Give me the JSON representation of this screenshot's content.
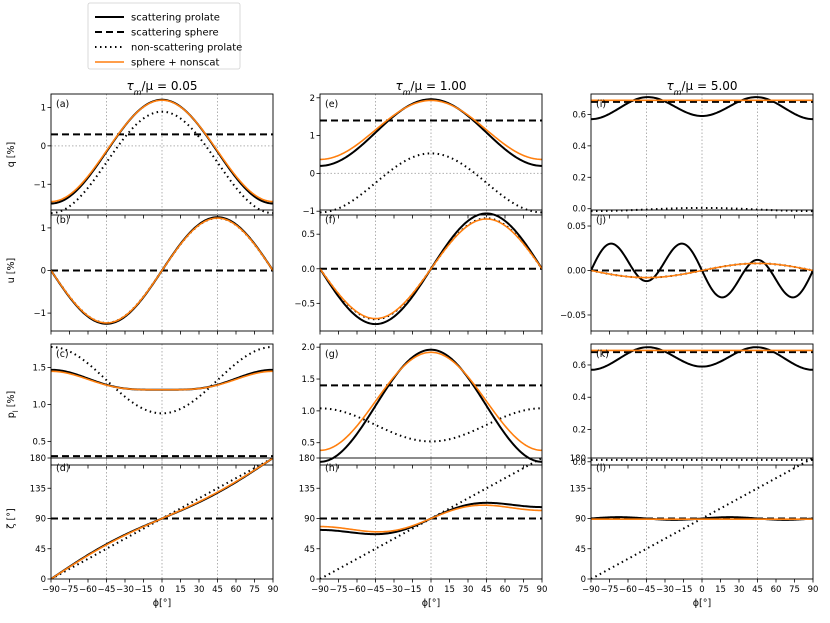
{
  "colors": {
    "scattering_prolate": "#000000",
    "scattering_sphere": "#000000",
    "non_scattering_prolate": "#000000",
    "sphere_nonscat": "#ff7f0e",
    "grid": "#b0b0b0"
  },
  "legend": {
    "placement": "top-left",
    "entries": [
      {
        "label": "scattering prolate",
        "style": "solid"
      },
      {
        "label": "scattering sphere",
        "style": "dashed"
      },
      {
        "label": "non-scattering prolate",
        "style": "dotted"
      },
      {
        "label": "sphere + nonscat",
        "style": "orange-solid"
      }
    ]
  },
  "columns": [
    {
      "title_prefix": "τ",
      "title_sub": "m",
      "title_suffix": "/μ = 0.05"
    },
    {
      "title_prefix": "τ",
      "title_sub": "m",
      "title_suffix": "/μ = 1.00"
    },
    {
      "title_prefix": "τ",
      "title_sub": "m",
      "title_suffix": "/μ = 5.00"
    }
  ],
  "row_ylabels": [
    {
      "main": "q [%]",
      "sub": ""
    },
    {
      "main": "u [%]",
      "sub": ""
    },
    {
      "main": "p",
      "sub": "l",
      "suffix": " [%]"
    },
    {
      "main": "ζ [°]",
      "sub": ""
    }
  ],
  "xlabel": "ϕ[°]",
  "chart_data": {
    "type": "line",
    "x_range": [
      -90,
      90
    ],
    "x_ticks": [
      -90,
      -75,
      -60,
      -45,
      -30,
      -15,
      0,
      15,
      30,
      45,
      60,
      75,
      90
    ],
    "x_tick_labels": [
      "−90",
      "−75",
      "−60",
      "−45",
      "−30",
      "−15",
      "0",
      "15",
      "30",
      "45",
      "60",
      "75",
      "90"
    ],
    "vertical_reference_lines": [
      -45,
      0,
      45
    ],
    "panels": [
      {
        "id": "a",
        "label": "(a)",
        "row": 0,
        "col": 0,
        "ylim": [
          -1.8,
          1.35
        ],
        "yticks": [
          -1,
          0,
          1
        ],
        "ytick_labels": [
          "−1",
          "0",
          "1"
        ],
        "hline": 0,
        "series": [
          {
            "name": "scattering prolate",
            "style": "solid",
            "formula": "cos2",
            "p": [
              -0.15,
              1.35
            ]
          },
          {
            "name": "scattering sphere",
            "style": "dashed",
            "formula": "const",
            "p": [
              0.3
            ]
          },
          {
            "name": "non-scattering prolate",
            "style": "dotted",
            "formula": "cos2",
            "p": [
              -0.43,
              1.32
            ]
          },
          {
            "name": "sphere + nonscat",
            "style": "orange",
            "formula": "cos2",
            "p": [
              -0.13,
              1.32
            ]
          }
        ]
      },
      {
        "id": "b",
        "label": "(b)",
        "row": 1,
        "col": 0,
        "ylim": [
          -1.42,
          1.42
        ],
        "yticks": [
          -1,
          0,
          1
        ],
        "ytick_labels": [
          "−1",
          "0",
          "1"
        ],
        "series": [
          {
            "name": "scattering prolate",
            "style": "solid",
            "formula": "sin2",
            "p": [
              1.25
            ]
          },
          {
            "name": "scattering sphere",
            "style": "dashed",
            "formula": "const",
            "p": [
              0
            ]
          },
          {
            "name": "non-scattering prolate",
            "style": "dotted",
            "formula": "sin2",
            "p": [
              1.23
            ]
          },
          {
            "name": "sphere + nonscat",
            "style": "orange",
            "formula": "sin2",
            "p": [
              1.23
            ]
          }
        ]
      },
      {
        "id": "c",
        "label": "(c)",
        "row": 2,
        "col": 0,
        "ylim": [
          0.18,
          1.82
        ],
        "yticks": [
          0.5,
          1.0,
          1.5
        ],
        "ytick_labels": [
          "0.5",
          "1.0",
          "1.5"
        ],
        "series": [
          {
            "name": "scattering prolate",
            "style": "solid",
            "formula": "flat",
            "p": [
              1.2,
              0.27,
              4
            ]
          },
          {
            "name": "scattering sphere",
            "style": "dashed",
            "formula": "const",
            "p": [
              0.3
            ]
          },
          {
            "name": "non-scattering prolate",
            "style": "dotted",
            "formula": "cos2",
            "p": [
              1.33,
              -0.45
            ]
          },
          {
            "name": "sphere + nonscat",
            "style": "orange",
            "formula": "flat",
            "p": [
              1.2,
              0.25,
              4
            ]
          }
        ]
      },
      {
        "id": "d",
        "label": "(d)",
        "row": 3,
        "col": 0,
        "ylim": [
          0,
          180
        ],
        "yticks": [
          0,
          45,
          90,
          135,
          180
        ],
        "ytick_labels": [
          "0",
          "45",
          "90",
          "135",
          "180"
        ],
        "series": [
          {
            "name": "scattering prolate",
            "style": "solid",
            "formula": "zeta",
            "p": [
              0.15
            ]
          },
          {
            "name": "scattering sphere",
            "style": "dashed",
            "formula": "const",
            "p": [
              90
            ]
          },
          {
            "name": "non-scattering prolate",
            "style": "dotted",
            "formula": "linear",
            "p": [
              90,
              1
            ]
          },
          {
            "name": "sphere + nonscat",
            "style": "orange",
            "formula": "zeta",
            "p": [
              0.13
            ]
          }
        ]
      },
      {
        "id": "e",
        "label": "(e)",
        "row": 0,
        "col": 1,
        "ylim": [
          -1.1,
          2.1
        ],
        "yticks": [
          -1,
          0,
          1,
          2
        ],
        "ytick_labels": [
          "−1",
          "0",
          "1",
          "2"
        ],
        "hline": 0,
        "series": [
          {
            "name": "scattering prolate",
            "style": "solid",
            "formula": "cos2",
            "p": [
              1.08,
              0.88
            ]
          },
          {
            "name": "scattering sphere",
            "style": "dashed",
            "formula": "const",
            "p": [
              1.4
            ]
          },
          {
            "name": "non-scattering prolate",
            "style": "dotted",
            "formula": "cos2",
            "p": [
              -0.25,
              0.78
            ]
          },
          {
            "name": "sphere + nonscat",
            "style": "orange",
            "formula": "cos2",
            "p": [
              1.15,
              0.78
            ]
          }
        ]
      },
      {
        "id": "f",
        "label": "(f)",
        "row": 1,
        "col": 1,
        "ylim": [
          -0.9,
          0.85
        ],
        "yticks": [
          -0.5,
          0,
          0.5
        ],
        "ytick_labels": [
          "−0.5",
          "0.0",
          "0.5"
        ],
        "series": [
          {
            "name": "scattering prolate",
            "style": "solid",
            "formula": "sin2",
            "p": [
              0.8
            ]
          },
          {
            "name": "scattering sphere",
            "style": "dashed",
            "formula": "const",
            "p": [
              0
            ]
          },
          {
            "name": "non-scattering prolate",
            "style": "dotted",
            "formula": "sin2",
            "p": [
              0.73
            ]
          },
          {
            "name": "sphere + nonscat",
            "style": "orange",
            "formula": "sin2",
            "p": [
              0.72
            ]
          }
        ]
      },
      {
        "id": "g",
        "label": "(g)",
        "row": 2,
        "col": 1,
        "ylim": [
          0.15,
          2.05
        ],
        "yticks": [
          0.5,
          1.0,
          1.5,
          2.0
        ],
        "ytick_labels": [
          "0.5",
          "1.0",
          "1.5",
          "2.0"
        ],
        "series": [
          {
            "name": "scattering prolate",
            "style": "solid",
            "formula": "cos2",
            "p": [
              1.08,
              0.88
            ]
          },
          {
            "name": "scattering sphere",
            "style": "dashed",
            "formula": "const",
            "p": [
              1.4
            ]
          },
          {
            "name": "non-scattering prolate",
            "style": "dotted",
            "formula": "cos2",
            "p": [
              0.78,
              -0.26
            ]
          },
          {
            "name": "sphere + nonscat",
            "style": "orange",
            "formula": "cos2",
            "p": [
              1.15,
              0.77
            ]
          }
        ]
      },
      {
        "id": "h",
        "label": "(h)",
        "row": 3,
        "col": 1,
        "ylim": [
          0,
          180
        ],
        "yticks": [
          0,
          45,
          90,
          135,
          180
        ],
        "ytick_labels": [
          "0",
          "45",
          "90",
          "135",
          "180"
        ],
        "series": [
          {
            "name": "scattering prolate",
            "style": "solid",
            "formula": "zeta_h",
            "p": [
              25
            ]
          },
          {
            "name": "scattering sphere",
            "style": "dashed",
            "formula": "const",
            "p": [
              90
            ]
          },
          {
            "name": "non-scattering prolate",
            "style": "dotted",
            "formula": "linear",
            "p": [
              90,
              1
            ]
          },
          {
            "name": "sphere + nonscat",
            "style": "orange",
            "formula": "zeta_h",
            "p": [
              20
            ]
          }
        ]
      },
      {
        "id": "i",
        "label": "(i)",
        "row": 0,
        "col": 2,
        "ylim": [
          -0.04,
          0.73
        ],
        "yticks": [
          0.0,
          0.2,
          0.4,
          0.6
        ],
        "ytick_labels": [
          "0.0",
          "0.2",
          "0.4",
          "0.6"
        ],
        "series": [
          {
            "name": "scattering prolate",
            "style": "solid",
            "formula": "cos4",
            "p": [
              0.645,
              0.065,
              0.01
            ]
          },
          {
            "name": "scattering sphere",
            "style": "dashed",
            "formula": "const",
            "p": [
              0.68
            ]
          },
          {
            "name": "non-scattering prolate",
            "style": "dotted",
            "formula": "cos2",
            "p": [
              -0.005,
              0.01
            ]
          },
          {
            "name": "sphere + nonscat",
            "style": "orange",
            "formula": "const",
            "p": [
              0.69
            ]
          }
        ]
      },
      {
        "id": "j",
        "label": "(j)",
        "row": 1,
        "col": 2,
        "ylim": [
          -0.068,
          0.068
        ],
        "yticks": [
          -0.05,
          0.0,
          0.05
        ],
        "ytick_labels": [
          "−0.05",
          "0.00",
          "0.05"
        ],
        "series": [
          {
            "name": "scattering prolate",
            "style": "solid",
            "formula": "sin6",
            "p": [
              0.06
            ]
          },
          {
            "name": "scattering sphere",
            "style": "dashed",
            "formula": "const",
            "p": [
              0
            ]
          },
          {
            "name": "non-scattering prolate",
            "style": "dotted",
            "formula": "sin2",
            "p": [
              0.008
            ]
          },
          {
            "name": "sphere + nonscat",
            "style": "orange",
            "formula": "sin2",
            "p": [
              0.008
            ]
          }
        ]
      },
      {
        "id": "k",
        "label": "(k)",
        "row": 2,
        "col": 2,
        "ylim": [
          -0.02,
          0.73
        ],
        "yticks": [
          0.0,
          0.2,
          0.4,
          0.6
        ],
        "ytick_labels": [
          "0.0",
          "0.2",
          "0.4",
          "0.6"
        ],
        "series": [
          {
            "name": "scattering prolate",
            "style": "solid",
            "formula": "cos4",
            "p": [
              0.645,
              0.065,
              0.01
            ]
          },
          {
            "name": "scattering sphere",
            "style": "dashed",
            "formula": "const",
            "p": [
              0.68
            ]
          },
          {
            "name": "non-scattering prolate",
            "style": "dotted",
            "formula": "const",
            "p": [
              0.012
            ]
          },
          {
            "name": "sphere + nonscat",
            "style": "orange",
            "formula": "const",
            "p": [
              0.69
            ]
          }
        ]
      },
      {
        "id": "l",
        "label": "(l)",
        "row": 3,
        "col": 2,
        "ylim": [
          0,
          180
        ],
        "yticks": [
          0,
          45,
          90,
          135,
          180
        ],
        "ytick_labels": [
          "0",
          "45",
          "90",
          "135",
          "180"
        ],
        "series": [
          {
            "name": "scattering prolate",
            "style": "solid",
            "formula": "wiggle",
            "p": [
              90,
              2
            ]
          },
          {
            "name": "scattering sphere",
            "style": "dashed",
            "formula": "const",
            "p": [
              90
            ]
          },
          {
            "name": "non-scattering prolate",
            "style": "dotted",
            "formula": "linear",
            "p": [
              90,
              1
            ]
          },
          {
            "name": "sphere + nonscat",
            "style": "orange",
            "formula": "const",
            "p": [
              89
            ]
          }
        ]
      }
    ]
  }
}
